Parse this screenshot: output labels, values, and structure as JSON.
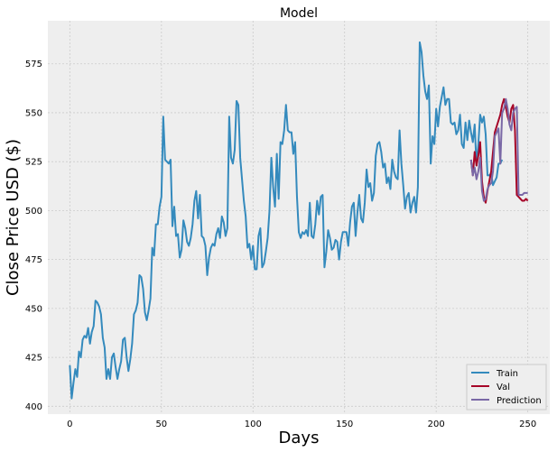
{
  "chart_data": {
    "type": "line",
    "title": "Model",
    "xlabel": "Days",
    "ylabel": "Close Price USD ($)",
    "xlim": [
      -12,
      262
    ],
    "ylim": [
      396,
      597
    ],
    "xticks": [
      0,
      50,
      100,
      150,
      200,
      250
    ],
    "yticks": [
      400,
      425,
      450,
      475,
      500,
      525,
      550,
      575
    ],
    "grid": true,
    "legend_position": "bottom-right",
    "colors": {
      "background": "#eeeeee",
      "grid": "#cbcbcb",
      "train": "#348abd",
      "val": "#a60628",
      "prediction": "#7a68a6"
    },
    "series": [
      {
        "name": "Train",
        "x_start": 0,
        "values": [
          421,
          404,
          412,
          419,
          415,
          428,
          425,
          434,
          436,
          435,
          440,
          432,
          438,
          441,
          454,
          453,
          451,
          447,
          435,
          430,
          414,
          419,
          414,
          425,
          427,
          420,
          414,
          419,
          423,
          434,
          435,
          425,
          418,
          424,
          432,
          447,
          449,
          453,
          467,
          466,
          460,
          448,
          444,
          449,
          455,
          481,
          477,
          493,
          493,
          502,
          507,
          548,
          526,
          525,
          524,
          526,
          492,
          502,
          487,
          488,
          476,
          480,
          495,
          491,
          484,
          482,
          486,
          493,
          505,
          510,
          496,
          508,
          487,
          486,
          482,
          467,
          476,
          481,
          483,
          482,
          488,
          491,
          486,
          497,
          494,
          487,
          491,
          548,
          527,
          524,
          531,
          556,
          554,
          527,
          516,
          505,
          497,
          481,
          483,
          475,
          482,
          470,
          470,
          487,
          491,
          471,
          473,
          479,
          486,
          500,
          527,
          512,
          502,
          529,
          506,
          535,
          534,
          541,
          554,
          541,
          540,
          540,
          529,
          535,
          507,
          489,
          486,
          489,
          488,
          490,
          487,
          504,
          487,
          486,
          493,
          505,
          498,
          507,
          508,
          471,
          479,
          490,
          486,
          480,
          481,
          485,
          484,
          475,
          484,
          489,
          489,
          489,
          482,
          494,
          502,
          504,
          487,
          499,
          508,
          496,
          494,
          504,
          521,
          512,
          514,
          505,
          509,
          528,
          534,
          535,
          530,
          522,
          524,
          514,
          517,
          511,
          526,
          520,
          517,
          516,
          541,
          524,
          513,
          501,
          507,
          509,
          499,
          504,
          507,
          499,
          512,
          586,
          581,
          569,
          561,
          557,
          564,
          524,
          538,
          534,
          552,
          543,
          553,
          558,
          563,
          554,
          557,
          557,
          545,
          544,
          545,
          539,
          541,
          549,
          534,
          532,
          545,
          536,
          546,
          540,
          535,
          544,
          523,
          534,
          549,
          545,
          548,
          539,
          518,
          518,
          519,
          513,
          515,
          517,
          524,
          524,
          526
        ]
      },
      {
        "name": "Val",
        "x_start": 219,
        "values": [
          526,
          518,
          530,
          523,
          528,
          535,
          515,
          507,
          504,
          510,
          515,
          520,
          530,
          540,
          543,
          546,
          549,
          554,
          557,
          553,
          548,
          545,
          552,
          554,
          541,
          508,
          507,
          506,
          505,
          505,
          506,
          505
        ]
      },
      {
        "name": "Prediction",
        "x_start": 219,
        "values": [
          526,
          518,
          522,
          516,
          520,
          527,
          510,
          505,
          506,
          511,
          513,
          514,
          520,
          538,
          540,
          542,
          524,
          550,
          552,
          557,
          552,
          544,
          541,
          550,
          552,
          553,
          508,
          508,
          508,
          509,
          509,
          509
        ]
      }
    ]
  }
}
